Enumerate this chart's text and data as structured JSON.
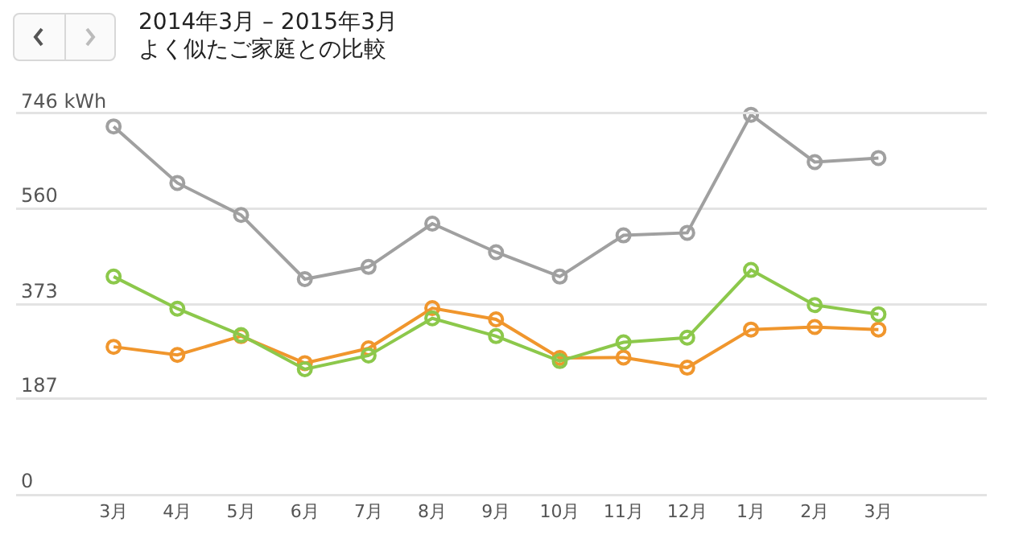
{
  "chart_data": {
    "type": "line",
    "title": "2014年3月 – 2015年3月",
    "subtitle": "よく似たご家庭との比較",
    "categories": [
      "3月",
      "4月",
      "5月",
      "6月",
      "7月",
      "8月",
      "9月",
      "10月",
      "11月",
      "12月",
      "1月",
      "2月",
      "3月"
    ],
    "series": [
      {
        "color": "#a0a0a0",
        "values": [
          722,
          611,
          548,
          422,
          446,
          531,
          475,
          427,
          508,
          513,
          745,
          652,
          660
        ]
      },
      {
        "color": "#8cc84b",
        "values": [
          427,
          364,
          312,
          245,
          272,
          345,
          310,
          261,
          298,
          307,
          440,
          371,
          353
        ]
      },
      {
        "color": "#f0962d",
        "values": [
          289,
          273,
          310,
          257,
          286,
          365,
          343,
          267,
          268,
          248,
          323,
          328,
          323
        ]
      }
    ],
    "ylim": [
      0,
      746
    ],
    "yticks": [
      0,
      187,
      373,
      560,
      {
        "value": 746,
        "label": "746 kWh"
      }
    ],
    "grid": "y",
    "marker": "circle",
    "line_style": "solid"
  }
}
